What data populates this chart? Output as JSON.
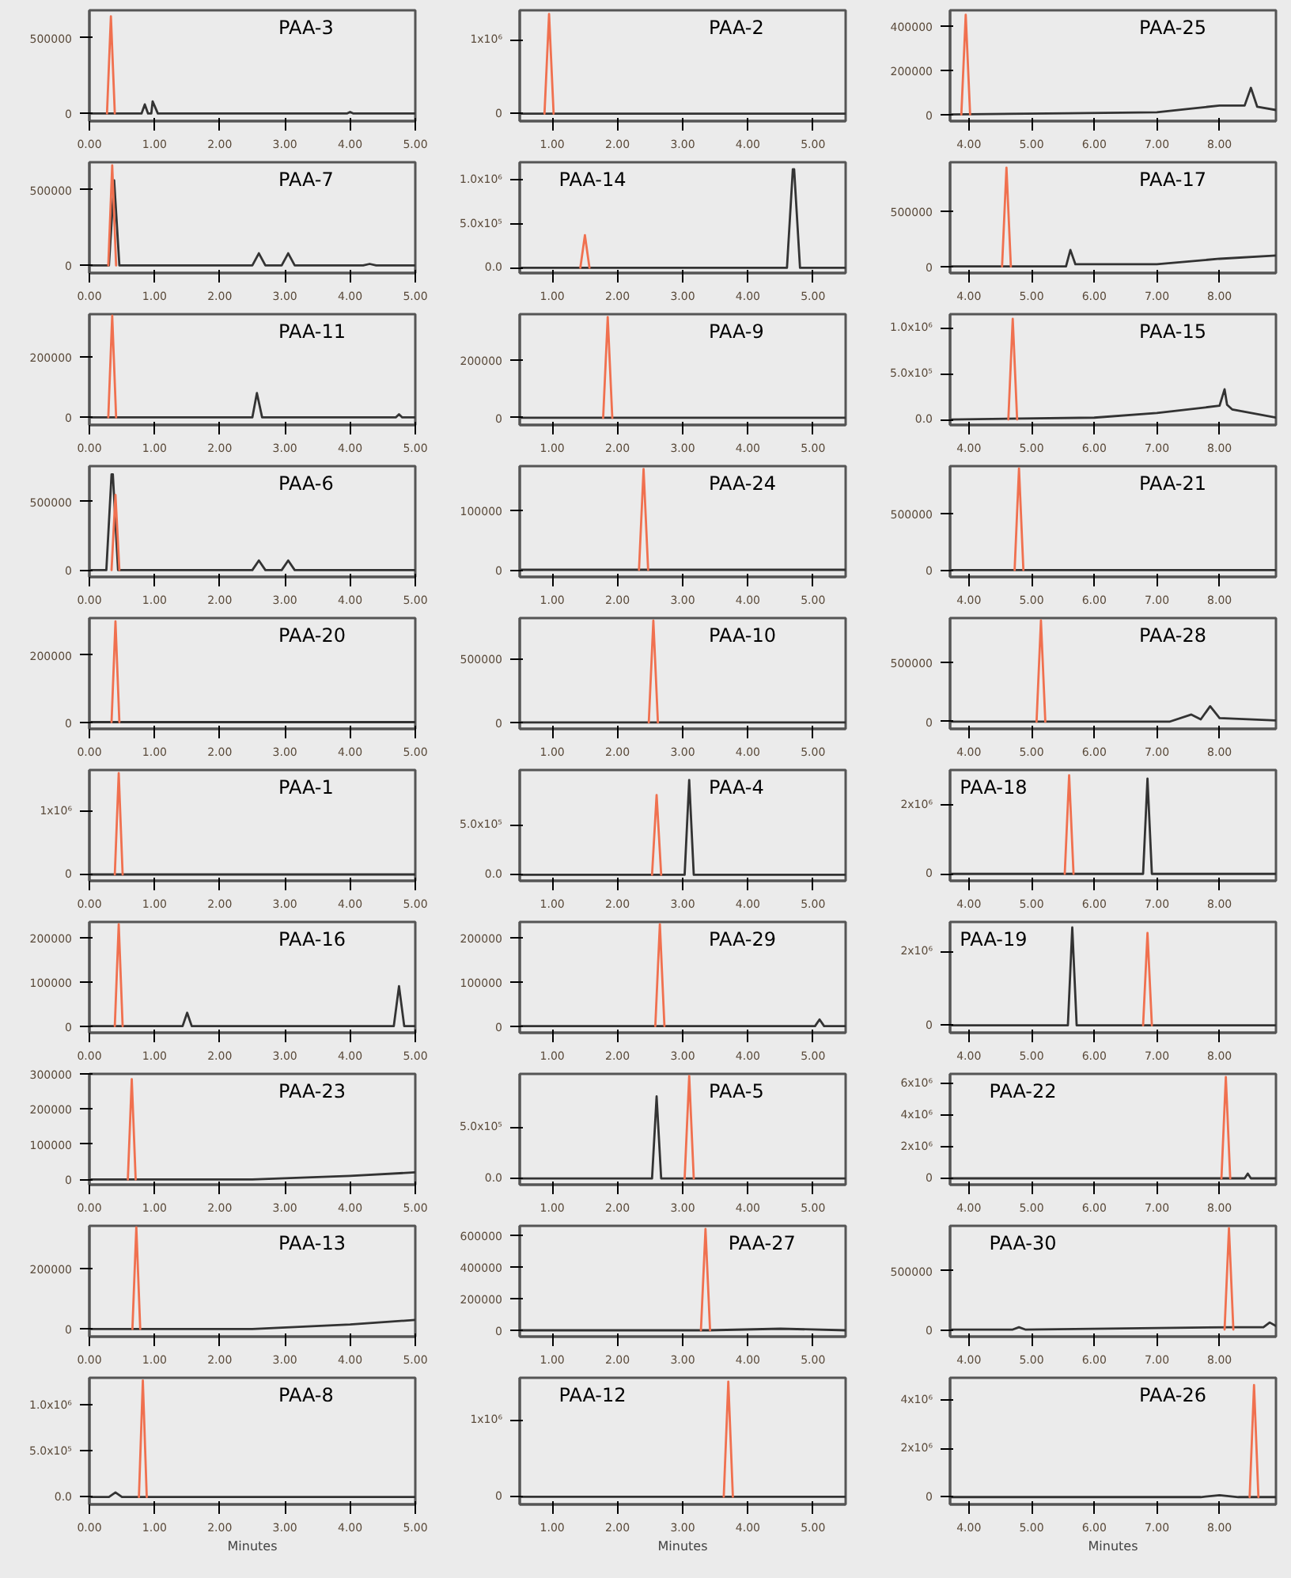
{
  "chart_data": [
    {
      "type": "line",
      "annotations": [
        "PAA-3"
      ],
      "xlim": [
        0,
        5
      ],
      "ylim": [
        -50000,
        680000
      ],
      "xticks": [
        {
          "value": 0,
          "label": "0.00"
        },
        {
          "value": 1,
          "label": "1.00"
        },
        {
          "value": 2,
          "label": "2.00"
        },
        {
          "value": 3,
          "label": "3.00"
        },
        {
          "value": 4,
          "label": "4.00"
        },
        {
          "value": 5,
          "label": "5.00"
        }
      ],
      "yticks": [
        0,
        500000
      ],
      "series": [
        {
          "color": "#333333",
          "x": [
            0,
            0.3,
            0.8,
            0.85,
            0.9,
            0.95,
            0.97,
            1.05,
            3.95,
            4.0,
            4.05,
            5
          ],
          "values": [
            0,
            0,
            0,
            60000,
            0,
            0,
            80000,
            0,
            0,
            10000,
            0,
            0
          ]
        },
        {
          "color": "#f0704f",
          "x": [
            0.27,
            0.33,
            0.39
          ],
          "values": [
            0,
            640000,
            0
          ]
        }
      ]
    },
    {
      "type": "line",
      "annotations": [
        "PAA-2"
      ],
      "xlim": [
        0.5,
        5.5
      ],
      "ylim": [
        -100000,
        1400000
      ],
      "xticks": [
        {
          "value": 1,
          "label": "1.00"
        },
        {
          "value": 2,
          "label": "2.00"
        },
        {
          "value": 3,
          "label": "3.00"
        },
        {
          "value": 4,
          "label": "4.00"
        },
        {
          "value": 5,
          "label": "5.00"
        }
      ],
      "yticks": [
        0,
        {
          "value": 1000000,
          "label": "1x10⁶"
        }
      ],
      "series": [
        {
          "color": "#333333",
          "x": [
            0.5,
            5.5
          ],
          "values": [
            0,
            0
          ]
        },
        {
          "color": "#f0704f",
          "x": [
            0.88,
            0.95,
            1.02
          ],
          "values": [
            0,
            1350000,
            0
          ]
        }
      ]
    },
    {
      "type": "line",
      "annotations": [
        "PAA-25"
      ],
      "xlim": [
        3.7,
        8.9
      ],
      "ylim": [
        -30000,
        470000
      ],
      "xticks": [
        {
          "value": 4,
          "label": "4.00"
        },
        {
          "value": 5,
          "label": "5.00"
        },
        {
          "value": 6,
          "label": "6.00"
        },
        {
          "value": 7,
          "label": "7.00"
        },
        {
          "value": 8,
          "label": "8.00"
        }
      ],
      "yticks": [
        0,
        200000,
        400000
      ],
      "series": [
        {
          "color": "#333333",
          "x": [
            3.7,
            5.6,
            7.0,
            7.5,
            8.0,
            8.4,
            8.5,
            8.6,
            8.9
          ],
          "values": [
            0,
            5000,
            10000,
            25000,
            40000,
            40000,
            120000,
            35000,
            20000
          ]
        },
        {
          "color": "#f0704f",
          "x": [
            3.88,
            3.95,
            4.02
          ],
          "values": [
            0,
            450000,
            0
          ]
        }
      ]
    },
    {
      "type": "line",
      "annotations": [
        "PAA-7"
      ],
      "xlim": [
        0,
        5
      ],
      "ylim": [
        -50000,
        680000
      ],
      "xticks": [
        {
          "value": 0,
          "label": "0.00"
        },
        {
          "value": 1,
          "label": "1.00"
        },
        {
          "value": 2,
          "label": "2.00"
        },
        {
          "value": 3,
          "label": "3.00"
        },
        {
          "value": 4,
          "label": "4.00"
        },
        {
          "value": 5,
          "label": "5.00"
        }
      ],
      "yticks": [
        0,
        500000
      ],
      "series": [
        {
          "color": "#333333",
          "x": [
            0,
            0.3,
            0.38,
            0.46,
            2.5,
            2.6,
            2.7,
            2.95,
            3.05,
            3.15,
            4.2,
            4.3,
            4.4,
            5
          ],
          "values": [
            0,
            0,
            560000,
            0,
            0,
            80000,
            0,
            0,
            80000,
            0,
            0,
            10000,
            0,
            0
          ]
        },
        {
          "color": "#f0704f",
          "x": [
            0.29,
            0.35,
            0.41
          ],
          "values": [
            0,
            660000,
            0
          ]
        }
      ]
    },
    {
      "type": "line",
      "annotations": [
        "PAA-14"
      ],
      "xlim": [
        0.5,
        5.5
      ],
      "ylim": [
        -60000,
        1200000
      ],
      "xticks": [
        {
          "value": 1,
          "label": "1.00"
        },
        {
          "value": 2,
          "label": "2.00"
        },
        {
          "value": 3,
          "label": "3.00"
        },
        {
          "value": 4,
          "label": "4.00"
        },
        {
          "value": 5,
          "label": "5.00"
        }
      ],
      "yticks": [
        {
          "value": 0,
          "label": "0.0"
        },
        {
          "value": 500000,
          "label": "5.0x10⁵"
        },
        {
          "value": 1000000,
          "label": "1.0x10⁶"
        }
      ],
      "series": [
        {
          "color": "#333333",
          "x": [
            0.5,
            4.6,
            4.69,
            4.71,
            4.8,
            5.5
          ],
          "values": [
            0,
            0,
            1120000,
            1120000,
            0,
            0
          ]
        },
        {
          "color": "#f0704f",
          "x": [
            1.43,
            1.5,
            1.57
          ],
          "values": [
            0,
            370000,
            0
          ]
        }
      ]
    },
    {
      "type": "line",
      "annotations": [
        "PAA-17"
      ],
      "xlim": [
        3.7,
        8.9
      ],
      "ylim": [
        -60000,
        950000
      ],
      "xticks": [
        {
          "value": 4,
          "label": "4.00"
        },
        {
          "value": 5,
          "label": "5.00"
        },
        {
          "value": 6,
          "label": "6.00"
        },
        {
          "value": 7,
          "label": "7.00"
        },
        {
          "value": 8,
          "label": "8.00"
        }
      ],
      "yticks": [
        0,
        500000
      ],
      "series": [
        {
          "color": "#333333",
          "x": [
            3.7,
            5.55,
            5.62,
            5.7,
            7.0,
            8.0,
            8.9
          ],
          "values": [
            0,
            0,
            150000,
            20000,
            20000,
            70000,
            100000
          ]
        },
        {
          "color": "#f0704f",
          "x": [
            4.53,
            4.6,
            4.67
          ],
          "values": [
            0,
            900000,
            0
          ]
        }
      ]
    },
    {
      "type": "line",
      "annotations": [
        "PAA-11"
      ],
      "xlim": [
        0,
        5
      ],
      "ylim": [
        -25000,
        340000
      ],
      "xticks": [
        {
          "value": 0,
          "label": "0.00"
        },
        {
          "value": 1,
          "label": "1.00"
        },
        {
          "value": 2,
          "label": "2.00"
        },
        {
          "value": 3,
          "label": "3.00"
        },
        {
          "value": 4,
          "label": "4.00"
        },
        {
          "value": 5,
          "label": "5.00"
        }
      ],
      "yticks": [
        0,
        200000
      ],
      "series": [
        {
          "color": "#333333",
          "x": [
            0,
            2.5,
            2.57,
            2.65,
            4.7,
            4.75,
            4.8,
            5
          ],
          "values": [
            0,
            0,
            80000,
            0,
            0,
            10000,
            0,
            0
          ]
        },
        {
          "color": "#f0704f",
          "x": [
            0.29,
            0.35,
            0.41
          ],
          "values": [
            0,
            335000,
            0
          ]
        }
      ]
    },
    {
      "type": "line",
      "annotations": [
        "PAA-9"
      ],
      "xlim": [
        0.5,
        5.5
      ],
      "ylim": [
        -25000,
        360000
      ],
      "xticks": [
        {
          "value": 1,
          "label": "1.00"
        },
        {
          "value": 2,
          "label": "2.00"
        },
        {
          "value": 3,
          "label": "3.00"
        },
        {
          "value": 4,
          "label": "4.00"
        },
        {
          "value": 5,
          "label": "5.00"
        }
      ],
      "yticks": [
        0,
        200000
      ],
      "series": [
        {
          "color": "#333333",
          "x": [
            0.5,
            5.5
          ],
          "values": [
            0,
            0
          ]
        },
        {
          "color": "#f0704f",
          "x": [
            1.78,
            1.85,
            1.92
          ],
          "values": [
            0,
            350000,
            0
          ]
        }
      ]
    },
    {
      "type": "line",
      "annotations": [
        "PAA-15"
      ],
      "xlim": [
        3.7,
        8.9
      ],
      "ylim": [
        -60000,
        1150000
      ],
      "xticks": [
        {
          "value": 4,
          "label": "4.00"
        },
        {
          "value": 5,
          "label": "5.00"
        },
        {
          "value": 6,
          "label": "6.00"
        },
        {
          "value": 7,
          "label": "7.00"
        },
        {
          "value": 8,
          "label": "8.00"
        }
      ],
      "yticks": [
        {
          "value": 0,
          "label": "0.0"
        },
        {
          "value": 500000,
          "label": "5.0x10⁵"
        },
        {
          "value": 1000000,
          "label": "1.0x10⁶"
        }
      ],
      "series": [
        {
          "color": "#333333",
          "x": [
            3.7,
            6.0,
            7.0,
            8.0,
            8.08,
            8.12,
            8.2,
            8.9
          ],
          "values": [
            0,
            20000,
            70000,
            150000,
            330000,
            160000,
            110000,
            20000
          ]
        },
        {
          "color": "#f0704f",
          "x": [
            4.63,
            4.7,
            4.77
          ],
          "values": [
            0,
            1100000,
            0
          ]
        }
      ]
    },
    {
      "type": "line",
      "annotations": [
        "PAA-6"
      ],
      "xlim": [
        0,
        5
      ],
      "ylim": [
        -50000,
        760000
      ],
      "xticks": [
        {
          "value": 0,
          "label": "0.00"
        },
        {
          "value": 1,
          "label": "1.00"
        },
        {
          "value": 2,
          "label": "2.00"
        },
        {
          "value": 3,
          "label": "3.00"
        },
        {
          "value": 4,
          "label": "4.00"
        },
        {
          "value": 5,
          "label": "5.00"
        }
      ],
      "yticks": [
        0,
        500000
      ],
      "series": [
        {
          "color": "#333333",
          "x": [
            0,
            0.26,
            0.34,
            0.36,
            0.44,
            2.5,
            2.6,
            2.7,
            2.95,
            3.05,
            3.15,
            5
          ],
          "values": [
            0,
            0,
            700000,
            700000,
            0,
            0,
            70000,
            0,
            0,
            70000,
            0,
            0
          ]
        },
        {
          "color": "#f0704f",
          "x": [
            0.34,
            0.4,
            0.46
          ],
          "values": [
            0,
            550000,
            0
          ]
        }
      ]
    },
    {
      "type": "line",
      "annotations": [
        "PAA-24"
      ],
      "xlim": [
        0.5,
        5.5
      ],
      "ylim": [
        -12000,
        175000
      ],
      "xticks": [
        {
          "value": 1,
          "label": "1.00"
        },
        {
          "value": 2,
          "label": "2.00"
        },
        {
          "value": 3,
          "label": "3.00"
        },
        {
          "value": 4,
          "label": "4.00"
        },
        {
          "value": 5,
          "label": "5.00"
        }
      ],
      "yticks": [
        0,
        100000
      ],
      "series": [
        {
          "color": "#333333",
          "x": [
            0.5,
            5.5
          ],
          "values": [
            0,
            0
          ]
        },
        {
          "color": "#f0704f",
          "x": [
            2.33,
            2.4,
            2.47
          ],
          "values": [
            0,
            170000,
            0
          ]
        }
      ]
    },
    {
      "type": "line",
      "annotations": [
        "PAA-21"
      ],
      "xlim": [
        3.7,
        8.9
      ],
      "ylim": [
        -60000,
        920000
      ],
      "xticks": [
        {
          "value": 4,
          "label": "4.00"
        },
        {
          "value": 5,
          "label": "5.00"
        },
        {
          "value": 6,
          "label": "6.00"
        },
        {
          "value": 7,
          "label": "7.00"
        },
        {
          "value": 8,
          "label": "8.00"
        }
      ],
      "yticks": [
        0,
        500000
      ],
      "series": [
        {
          "color": "#333333",
          "x": [
            3.7,
            8.9
          ],
          "values": [
            0,
            0
          ]
        },
        {
          "color": "#f0704f",
          "x": [
            4.73,
            4.8,
            4.87
          ],
          "values": [
            0,
            900000,
            0
          ]
        }
      ]
    },
    {
      "type": "line",
      "annotations": [
        "PAA-20"
      ],
      "xlim": [
        0,
        5
      ],
      "ylim": [
        -20000,
        310000
      ],
      "xticks": [
        {
          "value": 0,
          "label": "0.00"
        },
        {
          "value": 1,
          "label": "1.00"
        },
        {
          "value": 2,
          "label": "2.00"
        },
        {
          "value": 3,
          "label": "3.00"
        },
        {
          "value": 4,
          "label": "4.00"
        },
        {
          "value": 5,
          "label": "5.00"
        }
      ],
      "yticks": [
        0,
        200000
      ],
      "series": [
        {
          "color": "#333333",
          "x": [
            0,
            5
          ],
          "values": [
            0,
            0
          ]
        },
        {
          "color": "#f0704f",
          "x": [
            0.34,
            0.4,
            0.46
          ],
          "values": [
            0,
            300000,
            0
          ]
        }
      ]
    },
    {
      "type": "line",
      "annotations": [
        "PAA-10"
      ],
      "xlim": [
        0.5,
        5.5
      ],
      "ylim": [
        -50000,
        820000
      ],
      "xticks": [
        {
          "value": 1,
          "label": "1.00"
        },
        {
          "value": 2,
          "label": "2.00"
        },
        {
          "value": 3,
          "label": "3.00"
        },
        {
          "value": 4,
          "label": "4.00"
        },
        {
          "value": 5,
          "label": "5.00"
        }
      ],
      "yticks": [
        0,
        500000
      ],
      "series": [
        {
          "color": "#333333",
          "x": [
            0.5,
            5.5
          ],
          "values": [
            0,
            0
          ]
        },
        {
          "color": "#f0704f",
          "x": [
            2.48,
            2.55,
            2.62
          ],
          "values": [
            0,
            800000,
            0
          ]
        }
      ]
    },
    {
      "type": "line",
      "annotations": [
        "PAA-28"
      ],
      "xlim": [
        3.7,
        8.9
      ],
      "ylim": [
        -60000,
        870000
      ],
      "xticks": [
        {
          "value": 4,
          "label": "4.00"
        },
        {
          "value": 5,
          "label": "5.00"
        },
        {
          "value": 6,
          "label": "6.00"
        },
        {
          "value": 7,
          "label": "7.00"
        },
        {
          "value": 8,
          "label": "8.00"
        }
      ],
      "yticks": [
        0,
        500000
      ],
      "series": [
        {
          "color": "#333333",
          "x": [
            3.7,
            7.2,
            7.55,
            7.7,
            7.85,
            8.0,
            8.9
          ],
          "values": [
            0,
            0,
            60000,
            20000,
            130000,
            30000,
            10000
          ]
        },
        {
          "color": "#f0704f",
          "x": [
            5.08,
            5.15,
            5.22
          ],
          "values": [
            0,
            850000,
            0
          ]
        }
      ]
    },
    {
      "type": "line",
      "annotations": [
        "PAA-1"
      ],
      "xlim": [
        0,
        5
      ],
      "ylim": [
        -100000,
        1650000
      ],
      "xticks": [
        {
          "value": 0,
          "label": "0.00"
        },
        {
          "value": 1,
          "label": "1.00"
        },
        {
          "value": 2,
          "label": "2.00"
        },
        {
          "value": 3,
          "label": "3.00"
        },
        {
          "value": 4,
          "label": "4.00"
        },
        {
          "value": 5,
          "label": "5.00"
        }
      ],
      "yticks": [
        0,
        {
          "value": 1000000,
          "label": "1x10⁶"
        }
      ],
      "series": [
        {
          "color": "#333333",
          "x": [
            0,
            5
          ],
          "values": [
            0,
            0
          ]
        },
        {
          "color": "#f0704f",
          "x": [
            0.39,
            0.45,
            0.51
          ],
          "values": [
            0,
            1600000,
            0
          ]
        }
      ]
    },
    {
      "type": "line",
      "annotations": [
        "PAA-4"
      ],
      "xlim": [
        0.5,
        5.5
      ],
      "ylim": [
        -60000,
        1050000
      ],
      "xticks": [
        {
          "value": 1,
          "label": "1.00"
        },
        {
          "value": 2,
          "label": "2.00"
        },
        {
          "value": 3,
          "label": "3.00"
        },
        {
          "value": 4,
          "label": "4.00"
        },
        {
          "value": 5,
          "label": "5.00"
        }
      ],
      "yticks": [
        {
          "value": 0,
          "label": "0.0"
        },
        {
          "value": 500000,
          "label": "5.0x10⁵"
        }
      ],
      "series": [
        {
          "color": "#333333",
          "x": [
            0.5,
            3.03,
            3.1,
            3.17,
            5.5
          ],
          "values": [
            0,
            0,
            950000,
            0,
            0
          ]
        },
        {
          "color": "#f0704f",
          "x": [
            2.53,
            2.6,
            2.67
          ],
          "values": [
            0,
            800000,
            0
          ]
        }
      ]
    },
    {
      "type": "line",
      "annotations": [
        "PAA-18"
      ],
      "xlim": [
        3.7,
        8.9
      ],
      "ylim": [
        -200000,
        3000000
      ],
      "xticks": [
        {
          "value": 4,
          "label": "4.00"
        },
        {
          "value": 5,
          "label": "5.00"
        },
        {
          "value": 6,
          "label": "6.00"
        },
        {
          "value": 7,
          "label": "7.00"
        },
        {
          "value": 8,
          "label": "8.00"
        }
      ],
      "yticks": [
        0,
        {
          "value": 2000000,
          "label": "2x10⁶"
        }
      ],
      "series": [
        {
          "color": "#333333",
          "x": [
            3.7,
            6.78,
            6.85,
            6.92,
            8.9
          ],
          "values": [
            0,
            0,
            2750000,
            0,
            0
          ]
        },
        {
          "color": "#f0704f",
          "x": [
            5.53,
            5.6,
            5.67
          ],
          "values": [
            0,
            2850000,
            0
          ]
        }
      ]
    },
    {
      "type": "line",
      "annotations": [
        "PAA-16"
      ],
      "xlim": [
        0,
        5
      ],
      "ylim": [
        -15000,
        235000
      ],
      "xticks": [
        {
          "value": 0,
          "label": "0.00"
        },
        {
          "value": 1,
          "label": "1.00"
        },
        {
          "value": 2,
          "label": "2.00"
        },
        {
          "value": 3,
          "label": "3.00"
        },
        {
          "value": 4,
          "label": "4.00"
        },
        {
          "value": 5,
          "label": "5.00"
        }
      ],
      "yticks": [
        0,
        100000,
        200000
      ],
      "series": [
        {
          "color": "#333333",
          "x": [
            0,
            1.43,
            1.5,
            1.57,
            4.67,
            4.75,
            4.83,
            5
          ],
          "values": [
            0,
            0,
            30000,
            0,
            0,
            90000,
            0,
            0
          ]
        },
        {
          "color": "#f0704f",
          "x": [
            0.39,
            0.45,
            0.51
          ],
          "values": [
            0,
            230000,
            0
          ]
        }
      ]
    },
    {
      "type": "line",
      "annotations": [
        "PAA-29"
      ],
      "xlim": [
        0.5,
        5.5
      ],
      "ylim": [
        -15000,
        235000
      ],
      "xticks": [
        {
          "value": 1,
          "label": "1.00"
        },
        {
          "value": 2,
          "label": "2.00"
        },
        {
          "value": 3,
          "label": "3.00"
        },
        {
          "value": 4,
          "label": "4.00"
        },
        {
          "value": 5,
          "label": "5.00"
        }
      ],
      "yticks": [
        0,
        100000,
        200000
      ],
      "series": [
        {
          "color": "#333333",
          "x": [
            0.5,
            5.03,
            5.1,
            5.17,
            5.5
          ],
          "values": [
            0,
            0,
            15000,
            0,
            0
          ]
        },
        {
          "color": "#f0704f",
          "x": [
            2.58,
            2.65,
            2.72
          ],
          "values": [
            0,
            230000,
            0
          ]
        }
      ]
    },
    {
      "type": "line",
      "annotations": [
        "PAA-19"
      ],
      "xlim": [
        3.7,
        8.9
      ],
      "ylim": [
        -200000,
        2800000
      ],
      "xticks": [
        {
          "value": 4,
          "label": "4.00"
        },
        {
          "value": 5,
          "label": "5.00"
        },
        {
          "value": 6,
          "label": "6.00"
        },
        {
          "value": 7,
          "label": "7.00"
        },
        {
          "value": 8,
          "label": "8.00"
        }
      ],
      "yticks": [
        0,
        {
          "value": 2000000,
          "label": "2x10⁶"
        }
      ],
      "series": [
        {
          "color": "#333333",
          "x": [
            3.7,
            5.58,
            5.65,
            5.72,
            8.9
          ],
          "values": [
            0,
            0,
            2650000,
            0,
            0
          ]
        },
        {
          "color": "#f0704f",
          "x": [
            6.78,
            6.85,
            6.92
          ],
          "values": [
            0,
            2500000,
            0
          ]
        }
      ]
    },
    {
      "type": "line",
      "annotations": [
        "PAA-23"
      ],
      "xlim": [
        0,
        5
      ],
      "ylim": [
        -15000,
        300000
      ],
      "xticks": [
        {
          "value": 0,
          "label": "0.00"
        },
        {
          "value": 1,
          "label": "1.00"
        },
        {
          "value": 2,
          "label": "2.00"
        },
        {
          "value": 3,
          "label": "3.00"
        },
        {
          "value": 4,
          "label": "4.00"
        },
        {
          "value": 5,
          "label": "5.00"
        }
      ],
      "yticks": [
        0,
        100000,
        200000,
        300000
      ],
      "series": [
        {
          "color": "#333333",
          "x": [
            0,
            2.5,
            4.0,
            5
          ],
          "values": [
            0,
            0,
            10000,
            20000
          ]
        },
        {
          "color": "#f0704f",
          "x": [
            0.59,
            0.65,
            0.71
          ],
          "values": [
            0,
            285000,
            0
          ]
        }
      ]
    },
    {
      "type": "line",
      "annotations": [
        "PAA-5"
      ],
      "xlim": [
        0.5,
        5.5
      ],
      "ylim": [
        -60000,
        1020000
      ],
      "xticks": [
        {
          "value": 1,
          "label": "1.00"
        },
        {
          "value": 2,
          "label": "2.00"
        },
        {
          "value": 3,
          "label": "3.00"
        },
        {
          "value": 4,
          "label": "4.00"
        },
        {
          "value": 5,
          "label": "5.00"
        }
      ],
      "yticks": [
        {
          "value": 0,
          "label": "0.0"
        },
        {
          "value": 500000,
          "label": "5.0x10⁵"
        }
      ],
      "series": [
        {
          "color": "#333333",
          "x": [
            0.5,
            2.53,
            2.6,
            2.67,
            5.5
          ],
          "values": [
            0,
            0,
            800000,
            0,
            0
          ]
        },
        {
          "color": "#f0704f",
          "x": [
            3.03,
            3.1,
            3.17
          ],
          "values": [
            0,
            1000000,
            0
          ]
        }
      ]
    },
    {
      "type": "line",
      "annotations": [
        "PAA-22"
      ],
      "xlim": [
        3.7,
        8.9
      ],
      "ylim": [
        -400000,
        6600000
      ],
      "xticks": [
        {
          "value": 4,
          "label": "4.00"
        },
        {
          "value": 5,
          "label": "5.00"
        },
        {
          "value": 6,
          "label": "6.00"
        },
        {
          "value": 7,
          "label": "7.00"
        },
        {
          "value": 8,
          "label": "8.00"
        }
      ],
      "yticks": [
        0,
        {
          "value": 2000000,
          "label": "2x10⁶"
        },
        {
          "value": 4000000,
          "label": "4x10⁶"
        },
        {
          "value": 6000000,
          "label": "6x10⁶"
        }
      ],
      "series": [
        {
          "color": "#333333",
          "x": [
            3.7,
            8.4,
            8.45,
            8.5,
            8.9
          ],
          "values": [
            0,
            0,
            300000,
            0,
            0
          ]
        },
        {
          "color": "#f0704f",
          "x": [
            8.03,
            8.1,
            8.17
          ],
          "values": [
            0,
            6400000,
            0
          ]
        }
      ]
    },
    {
      "type": "line",
      "annotations": [
        "PAA-13"
      ],
      "xlim": [
        0,
        5
      ],
      "ylim": [
        -25000,
        340000
      ],
      "xticks": [
        {
          "value": 0,
          "label": "0.00"
        },
        {
          "value": 1,
          "label": "1.00"
        },
        {
          "value": 2,
          "label": "2.00"
        },
        {
          "value": 3,
          "label": "3.00"
        },
        {
          "value": 4,
          "label": "4.00"
        },
        {
          "value": 5,
          "label": "5.00"
        }
      ],
      "yticks": [
        0,
        200000
      ],
      "series": [
        {
          "color": "#333333",
          "x": [
            0,
            2.5,
            4.0,
            5
          ],
          "values": [
            0,
            0,
            15000,
            30000
          ]
        },
        {
          "color": "#f0704f",
          "x": [
            0.66,
            0.72,
            0.78
          ],
          "values": [
            0,
            335000,
            0
          ]
        }
      ]
    },
    {
      "type": "line",
      "annotations": [
        "PAA-27"
      ],
      "xlim": [
        0.5,
        5.5
      ],
      "ylim": [
        -40000,
        660000
      ],
      "xticks": [
        {
          "value": 1,
          "label": "1.00"
        },
        {
          "value": 2,
          "label": "2.00"
        },
        {
          "value": 3,
          "label": "3.00"
        },
        {
          "value": 4,
          "label": "4.00"
        },
        {
          "value": 5,
          "label": "5.00"
        }
      ],
      "yticks": [
        0,
        200000,
        400000,
        600000
      ],
      "series": [
        {
          "color": "#333333",
          "x": [
            0.5,
            3.4,
            4.5,
            5.5
          ],
          "values": [
            0,
            0,
            10000,
            0
          ]
        },
        {
          "color": "#f0704f",
          "x": [
            3.28,
            3.35,
            3.42
          ],
          "values": [
            0,
            640000,
            0
          ]
        }
      ]
    },
    {
      "type": "line",
      "annotations": [
        "PAA-30"
      ],
      "xlim": [
        3.7,
        8.9
      ],
      "ylim": [
        -60000,
        880000
      ],
      "xticks": [
        {
          "value": 4,
          "label": "4.00"
        },
        {
          "value": 5,
          "label": "5.00"
        },
        {
          "value": 6,
          "label": "6.00"
        },
        {
          "value": 7,
          "label": "7.00"
        },
        {
          "value": 8,
          "label": "8.00"
        }
      ],
      "yticks": [
        0,
        500000
      ],
      "series": [
        {
          "color": "#333333",
          "x": [
            3.7,
            4.7,
            4.8,
            4.9,
            8.2,
            8.7,
            8.8,
            8.9
          ],
          "values": [
            0,
            0,
            20000,
            0,
            20000,
            20000,
            60000,
            30000
          ]
        },
        {
          "color": "#f0704f",
          "x": [
            8.08,
            8.15,
            8.22
          ],
          "values": [
            0,
            860000,
            0
          ]
        }
      ]
    },
    {
      "type": "line",
      "xlabel": "Minutes",
      "annotations": [
        "PAA-8"
      ],
      "xlim": [
        0,
        5
      ],
      "ylim": [
        -80000,
        1300000
      ],
      "xticks": [
        {
          "value": 0,
          "label": "0.00"
        },
        {
          "value": 1,
          "label": "1.00"
        },
        {
          "value": 2,
          "label": "2.00"
        },
        {
          "value": 3,
          "label": "3.00"
        },
        {
          "value": 4,
          "label": "4.00"
        },
        {
          "value": 5,
          "label": "5.00"
        }
      ],
      "yticks": [
        {
          "value": 0,
          "label": "0.0"
        },
        {
          "value": 500000,
          "label": "5.0x10⁵"
        },
        {
          "value": 1000000,
          "label": "1.0x10⁶"
        }
      ],
      "series": [
        {
          "color": "#333333",
          "x": [
            0,
            0.3,
            0.4,
            0.5,
            5
          ],
          "values": [
            0,
            0,
            50000,
            0,
            0
          ]
        },
        {
          "color": "#f0704f",
          "x": [
            0.76,
            0.82,
            0.88
          ],
          "values": [
            0,
            1270000,
            0
          ]
        }
      ]
    },
    {
      "type": "line",
      "xlabel": "Minutes",
      "annotations": [
        "PAA-12"
      ],
      "xlim": [
        0.5,
        5.5
      ],
      "ylim": [
        -100000,
        1550000
      ],
      "xticks": [
        {
          "value": 1,
          "label": "1.00"
        },
        {
          "value": 2,
          "label": "2.00"
        },
        {
          "value": 3,
          "label": "3.00"
        },
        {
          "value": 4,
          "label": "4.00"
        },
        {
          "value": 5,
          "label": "5.00"
        }
      ],
      "yticks": [
        0,
        {
          "value": 1000000,
          "label": "1x10⁶"
        }
      ],
      "series": [
        {
          "color": "#333333",
          "x": [
            0.5,
            5.5
          ],
          "values": [
            0,
            0
          ]
        },
        {
          "color": "#f0704f",
          "x": [
            3.63,
            3.7,
            3.77
          ],
          "values": [
            0,
            1500000,
            0
          ]
        }
      ]
    },
    {
      "type": "line",
      "xlabel": "Minutes",
      "annotations": [
        "PAA-26"
      ],
      "xlim": [
        3.7,
        8.9
      ],
      "ylim": [
        -300000,
        4900000
      ],
      "xticks": [
        {
          "value": 4,
          "label": "4.00"
        },
        {
          "value": 5,
          "label": "5.00"
        },
        {
          "value": 6,
          "label": "6.00"
        },
        {
          "value": 7,
          "label": "7.00"
        },
        {
          "value": 8,
          "label": "8.00"
        }
      ],
      "yticks": [
        0,
        {
          "value": 2000000,
          "label": "2x10⁶"
        },
        {
          "value": 4000000,
          "label": "4x10⁶"
        }
      ],
      "series": [
        {
          "color": "#333333",
          "x": [
            3.7,
            7.7,
            8.0,
            8.3,
            8.9
          ],
          "values": [
            0,
            0,
            80000,
            0,
            0
          ]
        },
        {
          "color": "#f0704f",
          "x": [
            8.48,
            8.55,
            8.62
          ],
          "values": [
            0,
            4600000,
            0
          ]
        }
      ]
    }
  ]
}
